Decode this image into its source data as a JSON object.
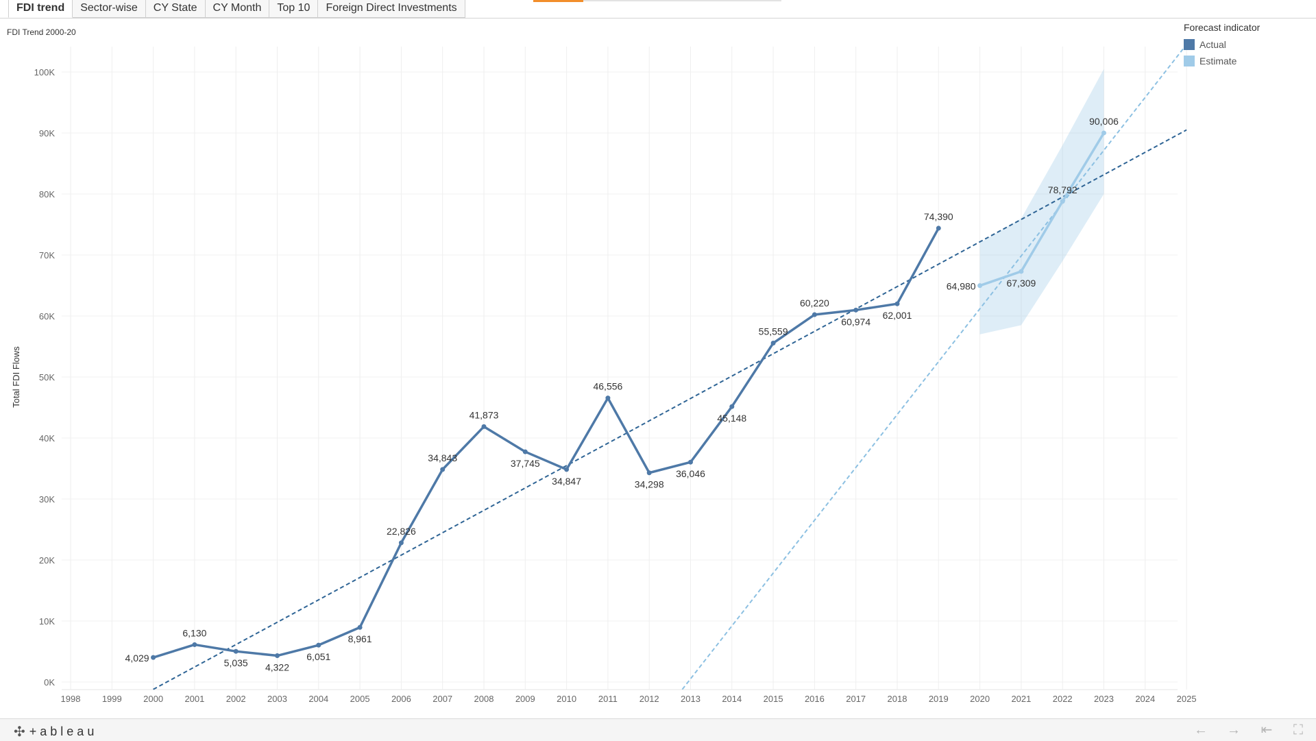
{
  "tabs": [
    {
      "label": "FDI trend",
      "active": true
    },
    {
      "label": "Sector-wise",
      "active": false
    },
    {
      "label": "CY State",
      "active": false
    },
    {
      "label": "CY Month",
      "active": false
    },
    {
      "label": "Top 10",
      "active": false
    },
    {
      "label": "Foreign Direct Investments",
      "active": false
    }
  ],
  "sheet": {
    "title": "FDI Trend 2000-20"
  },
  "legend": {
    "title": "Forecast indicator",
    "items": [
      {
        "label": "Actual",
        "color": "#4e79a7"
      },
      {
        "label": "Estimate",
        "color": "#a0cbe8"
      }
    ]
  },
  "chart_data": {
    "type": "line",
    "title": "",
    "xlabel": "",
    "ylabel": "Total FDI Flows",
    "xlim": [
      1998,
      2025
    ],
    "ylim": [
      0,
      100000
    ],
    "x_ticks": [
      "1998",
      "1999",
      "2000",
      "2001",
      "2002",
      "2003",
      "2004",
      "2005",
      "2006",
      "2007",
      "2008",
      "2009",
      "2010",
      "2011",
      "2012",
      "2013",
      "2014",
      "2015",
      "2016",
      "2017",
      "2018",
      "2019",
      "2020",
      "2021",
      "2022",
      "2023",
      "2024",
      "2025"
    ],
    "y_ticks": [
      {
        "value": 0,
        "label": "0K"
      },
      {
        "value": 10000,
        "label": "10K"
      },
      {
        "value": 20000,
        "label": "20K"
      },
      {
        "value": 30000,
        "label": "30K"
      },
      {
        "value": 40000,
        "label": "40K"
      },
      {
        "value": 50000,
        "label": "50K"
      },
      {
        "value": 60000,
        "label": "60K"
      },
      {
        "value": 70000,
        "label": "70K"
      },
      {
        "value": 80000,
        "label": "80K"
      },
      {
        "value": 90000,
        "label": "90K"
      },
      {
        "value": 100000,
        "label": "100K"
      }
    ],
    "grid": true,
    "legend_position": "top-right",
    "series": [
      {
        "name": "Actual",
        "color": "#4e79a7",
        "x": [
          2000,
          2001,
          2002,
          2003,
          2004,
          2005,
          2006,
          2007,
          2008,
          2009,
          2010,
          2011,
          2012,
          2013,
          2014,
          2015,
          2016,
          2017,
          2018,
          2019
        ],
        "values": [
          4029,
          6130,
          5035,
          4322,
          6051,
          8961,
          22826,
          34843,
          41873,
          37745,
          34847,
          46556,
          34298,
          36046,
          45148,
          55559,
          60220,
          60974,
          62001,
          74390
        ],
        "labels": [
          "4,029",
          "6,130",
          "5,035",
          "4,322",
          "6,051",
          "8,961",
          "22,826",
          "34,843",
          "41,873",
          "37,745",
          "34,847",
          "46,556",
          "34,298",
          "36,046",
          "45,148",
          "55,559",
          "60,220",
          "60,974",
          "62,001",
          "74,390"
        ],
        "label_position": [
          "left",
          "above",
          "below",
          "below",
          "below",
          "below",
          "above",
          "above",
          "above",
          "below",
          "below",
          "above",
          "below",
          "below",
          "below",
          "above",
          "above",
          "below",
          "below",
          "above"
        ]
      },
      {
        "name": "Estimate",
        "color": "#a0cbe8",
        "x": [
          2020,
          2021,
          2022,
          2023
        ],
        "values": [
          64980,
          67309,
          78792,
          90006
        ],
        "labels": [
          "64,980",
          "67,309",
          "78,792",
          "90,006"
        ],
        "label_position": [
          "left",
          "below",
          "above",
          "above"
        ],
        "band_upper": [
          72000,
          76000,
          88000,
          100500
        ],
        "band_lower": [
          57000,
          58500,
          69000,
          80000
        ]
      }
    ],
    "trend_lines": [
      {
        "color": "#2e6495",
        "dash": true,
        "x": [
          2000,
          2025
        ],
        "values": [
          -1200,
          90500
        ]
      },
      {
        "color": "#8cc0e2",
        "dash": true,
        "x": [
          2012.8,
          2025
        ],
        "values": [
          -1200,
          104500
        ]
      }
    ]
  }
}
